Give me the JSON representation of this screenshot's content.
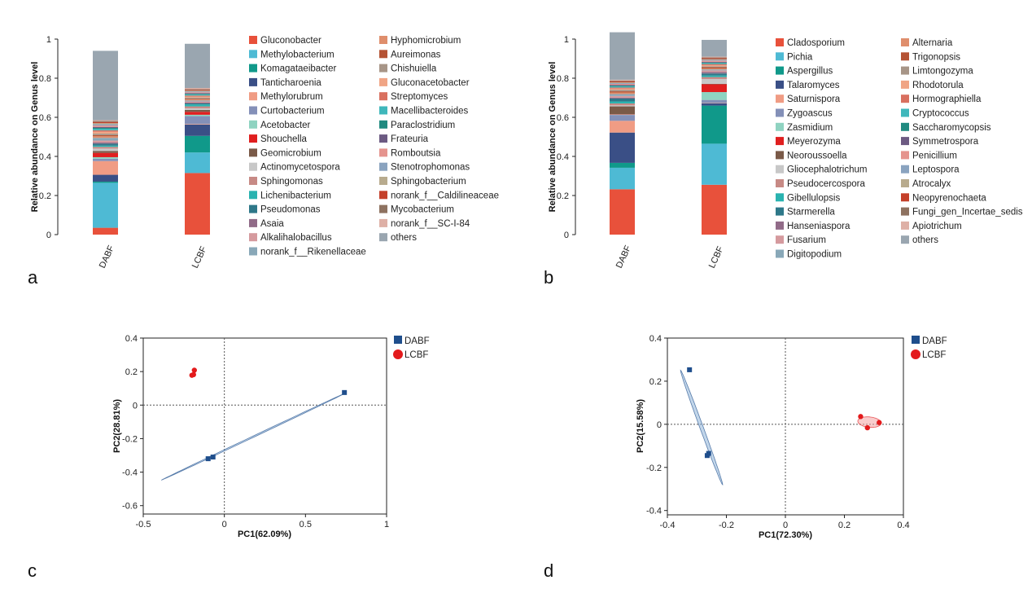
{
  "panel_labels": [
    "a",
    "b",
    "c",
    "d"
  ],
  "colors": {
    "others": "#9aa6b0",
    "pca_dabf": "#1f4e8c",
    "pca_lcbf": "#e31a1c",
    "ellipse_dabf": "#8fb4d8",
    "ellipse_lcbf": "#f4a3a3"
  },
  "chart_data": [
    {
      "type": "bar",
      "panel": "a",
      "title": "",
      "xlabel": "",
      "ylabel": "Relative abundance on Genus level",
      "ylim": [
        0,
        1
      ],
      "yticks": [
        "0",
        "0.2",
        "0.4",
        "0.6",
        "0.8",
        "1"
      ],
      "categories": [
        "DABF",
        "LCBF"
      ],
      "series": [
        {
          "name": "Gluconobacter",
          "color": "#e8513b",
          "values": [
            0.035,
            0.315
          ]
        },
        {
          "name": "Methylobacterium",
          "color": "#4ebad4",
          "values": [
            0.23,
            0.105
          ]
        },
        {
          "name": "Komagataeibacter",
          "color": "#10998a",
          "values": [
            0.006,
            0.085
          ]
        },
        {
          "name": "Tanticharoenia",
          "color": "#3a4f86",
          "values": [
            0.035,
            0.058
          ]
        },
        {
          "name": "Methylorubrum",
          "color": "#f09c84",
          "values": [
            0.07,
            0.003
          ]
        },
        {
          "name": "Curtobacterium",
          "color": "#8490b8",
          "values": [
            0.012,
            0.04
          ]
        },
        {
          "name": "Acetobacter",
          "color": "#8fd3c1",
          "values": [
            0.008,
            0.007
          ]
        },
        {
          "name": "Shouchella",
          "color": "#e01f1f",
          "values": [
            0.022,
            0.015
          ]
        },
        {
          "name": "Geomicrobium",
          "color": "#7a5a48",
          "values": [
            0.01,
            0.01
          ]
        },
        {
          "name": "Actinomycetospora",
          "color": "#c8c8c8",
          "values": [
            0.012,
            0.008
          ]
        },
        {
          "name": "Sphingomonas",
          "color": "#c78a85",
          "values": [
            0.009,
            0.01
          ]
        },
        {
          "name": "Lichenibacterium",
          "color": "#2ab3b0",
          "values": [
            0.006,
            0.01
          ]
        },
        {
          "name": "Pseudomonas",
          "color": "#2e7889",
          "values": [
            0.01,
            0.005
          ]
        },
        {
          "name": "Asaia",
          "color": "#916b88",
          "values": [
            0.006,
            0.004
          ]
        },
        {
          "name": "Alkalihalobacillus",
          "color": "#d59a9e",
          "values": [
            0.01,
            0.006
          ]
        },
        {
          "name": "norank_f__Rikenellaceae",
          "color": "#89a8b8",
          "values": [
            0.014,
            0.005
          ]
        },
        {
          "name": "Hyphomicrobium",
          "color": "#df8e6c",
          "values": [
            0.008,
            0.005
          ]
        },
        {
          "name": "Aureimonas",
          "color": "#b55334",
          "values": [
            0.006,
            0.004
          ]
        },
        {
          "name": "Chishuiella",
          "color": "#a79587",
          "values": [
            0.008,
            0.006
          ]
        },
        {
          "name": "Gluconacetobacter",
          "color": "#f0a585",
          "values": [
            0.009,
            0.005
          ]
        },
        {
          "name": "Streptomyces",
          "color": "#d9705f",
          "values": [
            0.007,
            0.005
          ]
        },
        {
          "name": "Macellibacteroides",
          "color": "#3fb7bb",
          "values": [
            0.008,
            0.005
          ]
        },
        {
          "name": "Paraclostridium",
          "color": "#208a80",
          "values": [
            0.005,
            0.004
          ]
        },
        {
          "name": "Frateuria",
          "color": "#6c5a82",
          "values": [
            0.005,
            0.004
          ]
        },
        {
          "name": "Romboutsia",
          "color": "#e5948e",
          "values": [
            0.007,
            0.004
          ]
        },
        {
          "name": "Stenotrophomonas",
          "color": "#8aa3bf",
          "values": [
            0.006,
            0.004
          ]
        },
        {
          "name": "Sphingobacterium",
          "color": "#b8ab8e",
          "values": [
            0.006,
            0.004
          ]
        },
        {
          "name": "norank_f__Caldilineaceae",
          "color": "#c4402a",
          "values": [
            0.006,
            0.004
          ]
        },
        {
          "name": "Mycobacterium",
          "color": "#8e7260",
          "values": [
            0.005,
            0.004
          ]
        },
        {
          "name": "norank_f__SC-I-84",
          "color": "#deb0a6",
          "values": [
            0.004,
            0.006
          ]
        },
        {
          "name": "others",
          "color": "#9aa6b0",
          "values": [
            0.355,
            0.226
          ]
        }
      ]
    },
    {
      "type": "bar",
      "panel": "b",
      "title": "",
      "xlabel": "",
      "ylabel": "Relative abundance on Genus level",
      "ylim": [
        0,
        1
      ],
      "yticks": [
        "0",
        "0.2",
        "0.4",
        "0.6",
        "0.8",
        "1"
      ],
      "categories": [
        "DABF",
        "LCBF"
      ],
      "series": [
        {
          "name": "Cladosporium",
          "color": "#e8513b",
          "values": [
            0.232,
            0.255
          ]
        },
        {
          "name": "Pichia",
          "color": "#4ebad4",
          "values": [
            0.11,
            0.21
          ]
        },
        {
          "name": "Aspergillus",
          "color": "#10998a",
          "values": [
            0.025,
            0.195
          ]
        },
        {
          "name": "Talaromyces",
          "color": "#3a4f86",
          "values": [
            0.155,
            0.012
          ]
        },
        {
          "name": "Saturnispora",
          "color": "#f09c84",
          "values": [
            0.06,
            0.002
          ]
        },
        {
          "name": "Zygoascus",
          "color": "#8490b8",
          "values": [
            0.03,
            0.015
          ]
        },
        {
          "name": "Zasmidium",
          "color": "#8fd3c1",
          "values": [
            0.002,
            0.04
          ]
        },
        {
          "name": "Meyerozyma",
          "color": "#e01f1f",
          "values": [
            0.002,
            0.04
          ]
        },
        {
          "name": "Neoroussoella",
          "color": "#7a5a48",
          "values": [
            0.04,
            0.002
          ]
        },
        {
          "name": "Gliocephalotrichum",
          "color": "#c8c8c8",
          "values": [
            0.005,
            0.025
          ]
        },
        {
          "name": "Pseudocercospora",
          "color": "#c78a85",
          "values": [
            0.01,
            0.01
          ]
        },
        {
          "name": "Gibellulopsis",
          "color": "#2ab3b0",
          "values": [
            0.01,
            0.008
          ]
        },
        {
          "name": "Starmerella",
          "color": "#2e7889",
          "values": [
            0.015,
            0.01
          ]
        },
        {
          "name": "Hanseniaspora",
          "color": "#916b88",
          "values": [
            0.005,
            0.008
          ]
        },
        {
          "name": "Fusarium",
          "color": "#d59a9e",
          "values": [
            0.008,
            0.008
          ]
        },
        {
          "name": "Digitopodium",
          "color": "#89a8b8",
          "values": [
            0.01,
            0.005
          ]
        },
        {
          "name": "Alternaria",
          "color": "#df8e6c",
          "values": [
            0.008,
            0.005
          ]
        },
        {
          "name": "Trigonopsis",
          "color": "#b55334",
          "values": [
            0.006,
            0.006
          ]
        },
        {
          "name": "Limtongozyma",
          "color": "#a79587",
          "values": [
            0.008,
            0.005
          ]
        },
        {
          "name": "Rhodotorula",
          "color": "#f0a585",
          "values": [
            0.006,
            0.005
          ]
        },
        {
          "name": "Hormographiella",
          "color": "#d9705f",
          "values": [
            0.005,
            0.006
          ]
        },
        {
          "name": "Cryptococcus",
          "color": "#3fb7bb",
          "values": [
            0.005,
            0.004
          ]
        },
        {
          "name": "Saccharomycopsis",
          "color": "#208a80",
          "values": [
            0.005,
            0.004
          ]
        },
        {
          "name": "Symmetrospora",
          "color": "#6c5a82",
          "values": [
            0.004,
            0.004
          ]
        },
        {
          "name": "Penicillium",
          "color": "#e5948e",
          "values": [
            0.005,
            0.006
          ]
        },
        {
          "name": "Leptospora",
          "color": "#8aa3bf",
          "values": [
            0.004,
            0.004
          ]
        },
        {
          "name": "Atrocalyx",
          "color": "#b8ab8e",
          "values": [
            0.004,
            0.004
          ]
        },
        {
          "name": "Neopyrenochaeta",
          "color": "#c4402a",
          "values": [
            0.005,
            0.004
          ]
        },
        {
          "name": "Fungi_gen_Incertae_sedis",
          "color": "#8e7260",
          "values": [
            0.004,
            0.004
          ]
        },
        {
          "name": "Apiotrichum",
          "color": "#deb0a6",
          "values": [
            0.004,
            0.004
          ]
        },
        {
          "name": "others",
          "color": "#9aa6b0",
          "values": [
            0.243,
            0.086
          ]
        }
      ]
    },
    {
      "type": "scatter",
      "panel": "c",
      "title": "",
      "xlabel": "PC1(62.09%)",
      "ylabel": "PC2(28.81%)",
      "xlim": [
        -0.5,
        1
      ],
      "ylim": [
        -0.65,
        0.4
      ],
      "xticks": [
        "-0.5",
        "0",
        "0.5",
        "1"
      ],
      "yticks": [
        "0.4",
        "0.2",
        "0",
        "-0.2",
        "-0.4",
        "-0.6"
      ],
      "legend": "top-right",
      "series": [
        {
          "name": "DABF",
          "marker": "square",
          "x": [
            0.74,
            -0.07,
            -0.1
          ],
          "y": [
            0.075,
            -0.31,
            -0.32
          ],
          "ellipse": {
            "cx": 0.175,
            "cy": -0.19,
            "semi_major": 0.62,
            "semi_minor": 0.004,
            "angle_deg": 24.6
          }
        },
        {
          "name": "LCBF",
          "marker": "circle",
          "x": [
            -0.185,
            -0.2,
            -0.19
          ],
          "y": [
            0.208,
            0.178,
            0.182
          ],
          "ellipse": null
        }
      ]
    },
    {
      "type": "scatter",
      "panel": "d",
      "title": "",
      "xlabel": "PC1(72.30%)",
      "ylabel": "PC2(15.58%)",
      "xlim": [
        -0.4,
        0.4
      ],
      "ylim": [
        -0.42,
        0.4
      ],
      "xticks": [
        "-0.4",
        "-0.2",
        "0",
        "0.2",
        "0.4"
      ],
      "yticks": [
        "0.4",
        "0.2",
        "0",
        "-0.2",
        "-0.4"
      ],
      "legend": "top-right",
      "series": [
        {
          "name": "DABF",
          "marker": "square",
          "x": [
            -0.325,
            -0.26,
            -0.265
          ],
          "y": [
            0.253,
            -0.135,
            -0.145
          ],
          "ellipse": {
            "cx": -0.284,
            "cy": -0.015,
            "semi_major": 0.275,
            "semi_minor": 0.006,
            "angle_deg": -75
          }
        },
        {
          "name": "LCBF",
          "marker": "circle",
          "x": [
            0.255,
            0.278,
            0.318
          ],
          "y": [
            0.036,
            -0.016,
            0.008
          ],
          "ellipse": {
            "cx": 0.285,
            "cy": 0.01,
            "semi_major": 0.04,
            "semi_minor": 0.024,
            "angle_deg": -10
          }
        }
      ]
    }
  ]
}
